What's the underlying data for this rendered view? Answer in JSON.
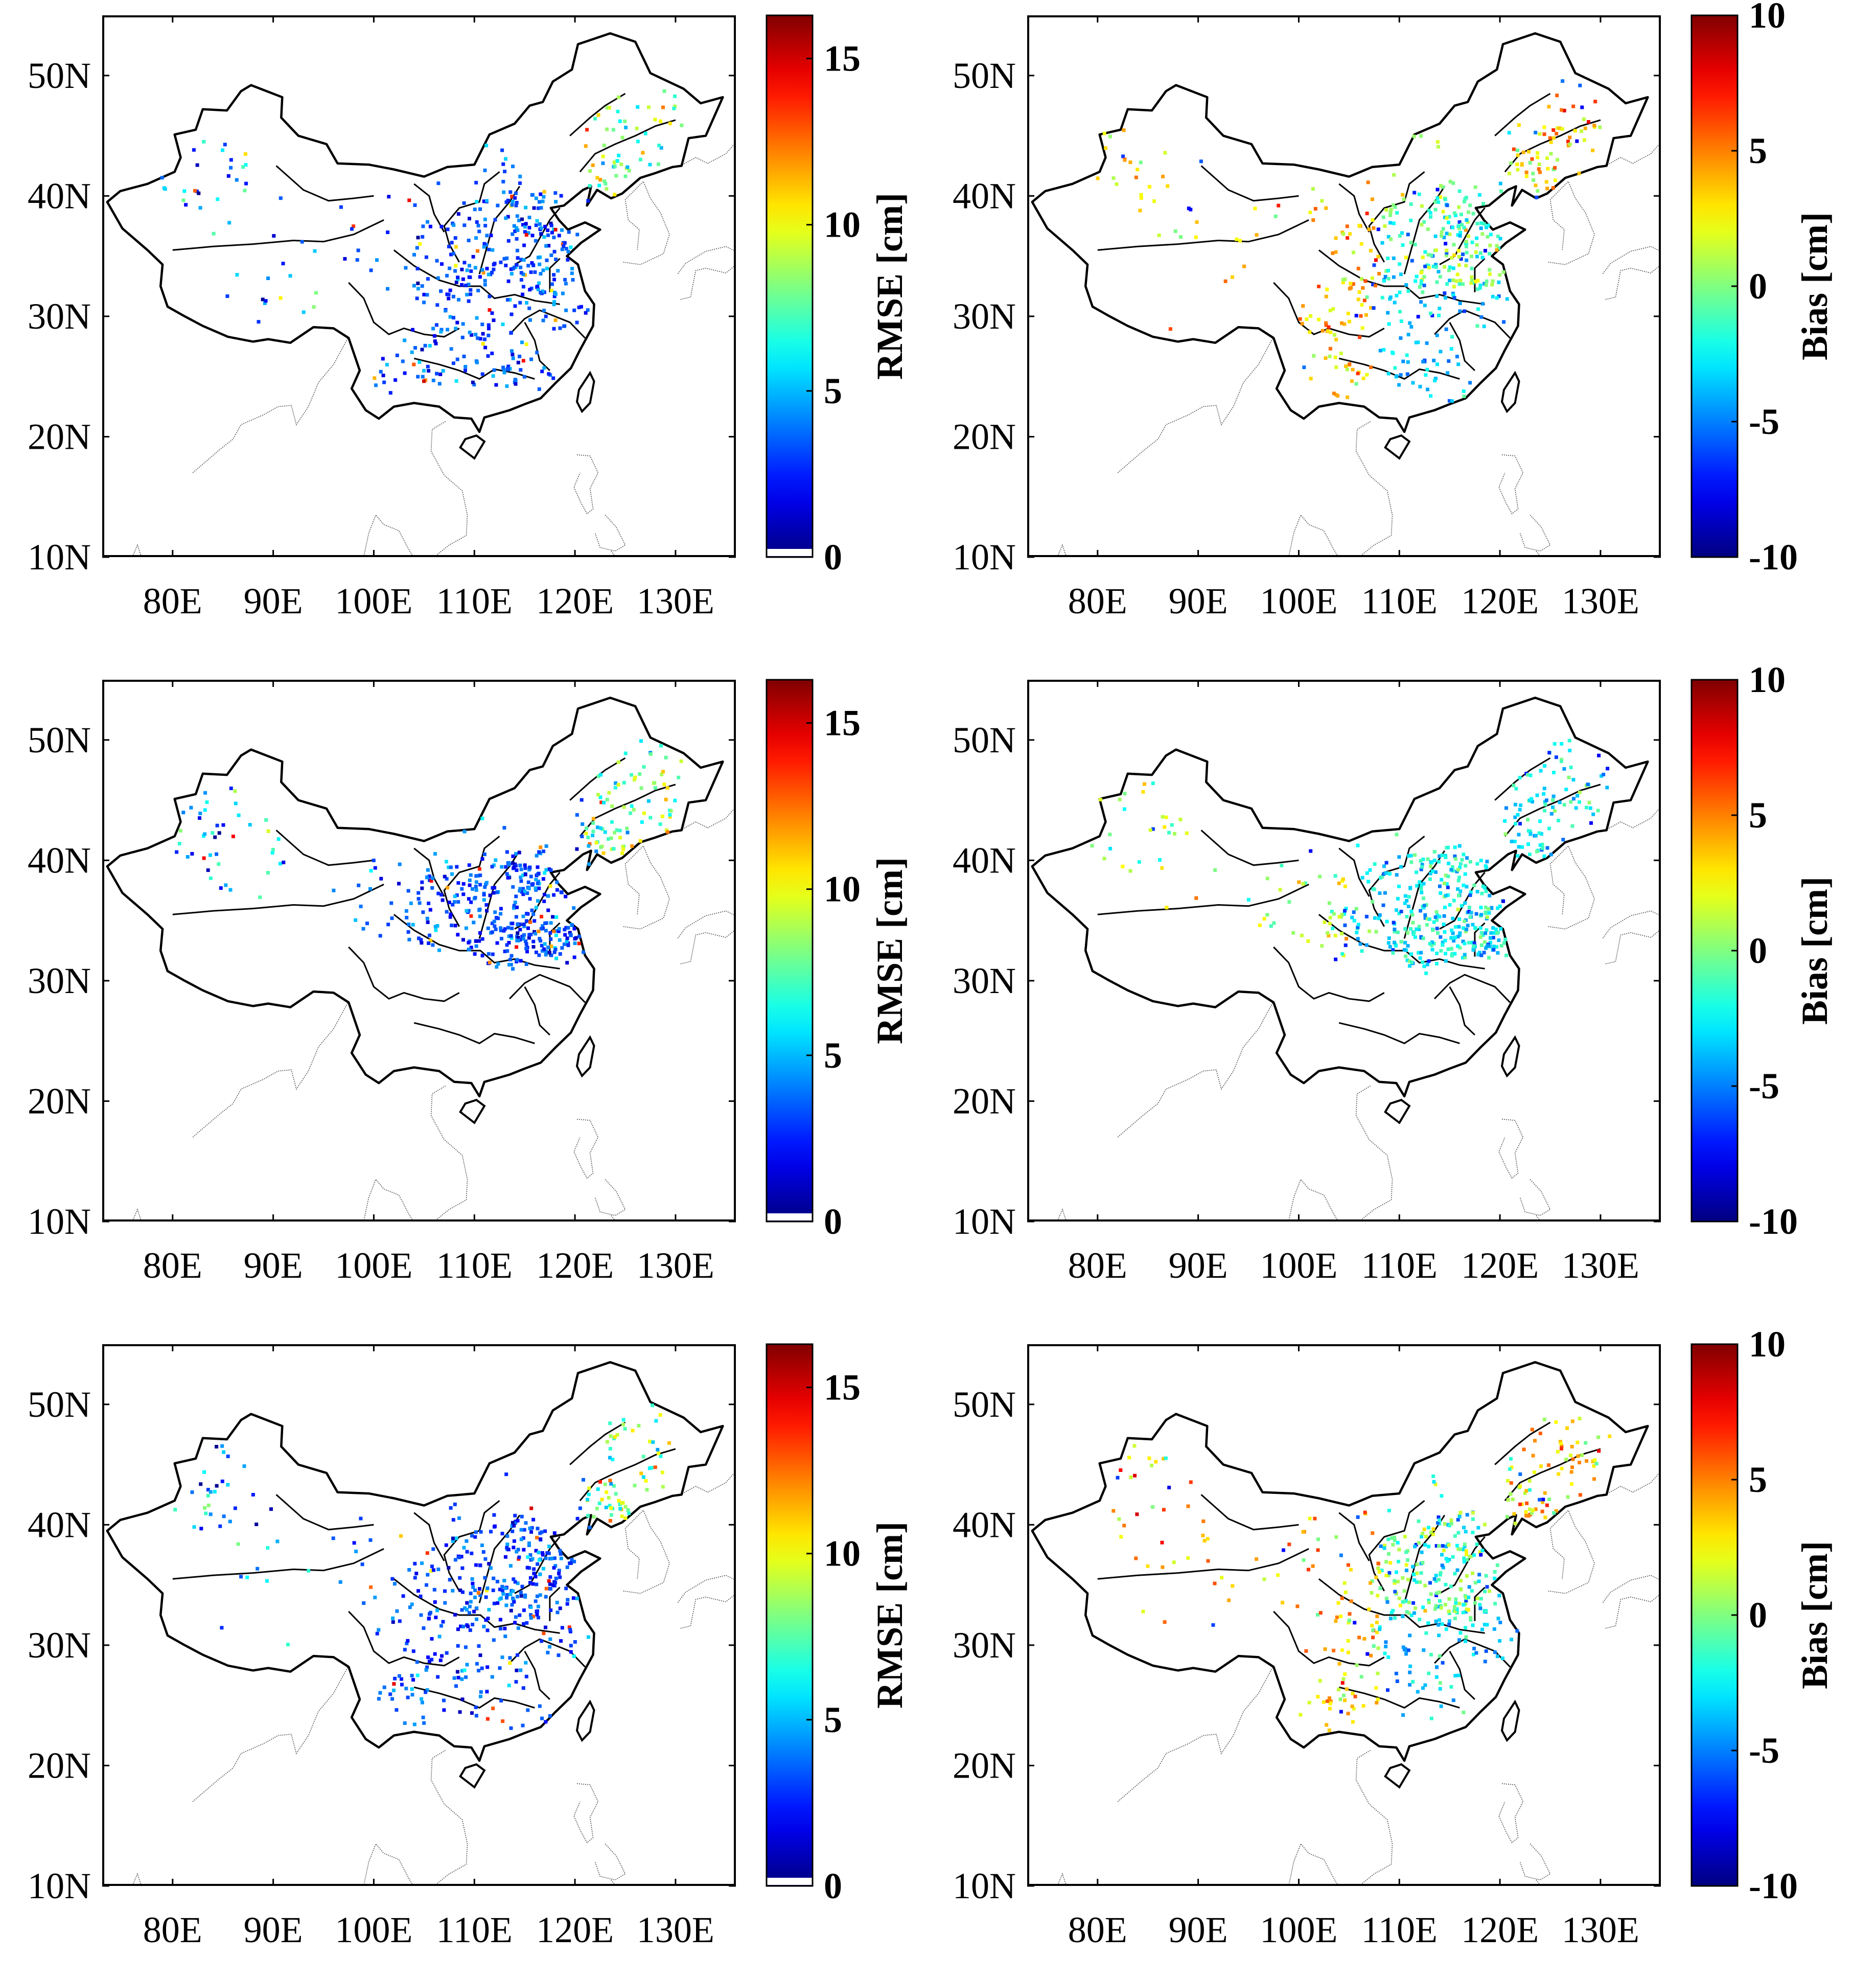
{
  "figure": {
    "rmse_colorbar": {
      "label": "RMSE [cm]",
      "ticks": [
        "0",
        "5",
        "10",
        "15"
      ],
      "range": [
        0,
        16.3
      ]
    },
    "bias_colorbar": {
      "label": "Bias [cm]",
      "ticks": [
        "-10",
        "-5",
        "0",
        "5",
        "10"
      ],
      "range": [
        -10,
        10
      ]
    }
  },
  "chart_data": [
    {
      "type": "scatter",
      "metric": "RMSE",
      "row": 1,
      "col": 1,
      "cbar_label": "RMSE [cm]",
      "xlim": [
        73,
        136
      ],
      "ylim": [
        10,
        55
      ],
      "xticks": [
        "80E",
        "90E",
        "100E",
        "110E",
        "120E",
        "130E"
      ],
      "yticks": [
        "10N",
        "20N",
        "30N",
        "40N",
        "50N"
      ],
      "seed": 11,
      "description": "Station RMSE mostly 1-6 cm in north/central China, higher (8-14 cm) in the northeast"
    },
    {
      "type": "scatter",
      "metric": "Bias",
      "row": 1,
      "col": 2,
      "cbar_label": "Bias [cm]",
      "xlim": [
        73,
        136
      ],
      "ylim": [
        10,
        55
      ],
      "xticks": [
        "80E",
        "90E",
        "100E",
        "110E",
        "120E",
        "130E"
      ],
      "yticks": [
        "10N",
        "20N",
        "30N",
        "40N",
        "50N"
      ],
      "seed": 23,
      "description": "Station bias mostly -4 to +4 cm, positive in western/northeastern regions"
    },
    {
      "type": "scatter",
      "metric": "RMSE",
      "row": 2,
      "col": 1,
      "cbar_label": "RMSE [cm]",
      "xlim": [
        73,
        136
      ],
      "ylim": [
        10,
        55
      ],
      "xticks": [
        "80E",
        "90E",
        "100E",
        "110E",
        "120E",
        "130E"
      ],
      "yticks": [
        "10N",
        "20N",
        "30N",
        "40N",
        "50N"
      ],
      "seed": 37,
      "description": "Station RMSE, north China only, mostly 1-6 cm, higher in northeast"
    },
    {
      "type": "scatter",
      "metric": "Bias",
      "row": 2,
      "col": 2,
      "cbar_label": "Bias [cm]",
      "xlim": [
        73,
        136
      ],
      "ylim": [
        10,
        55
      ],
      "xticks": [
        "80E",
        "90E",
        "100E",
        "110E",
        "120E",
        "130E"
      ],
      "yticks": [
        "10N",
        "20N",
        "30N",
        "40N",
        "50N"
      ],
      "seed": 41,
      "description": "Station bias, north China only, mostly -5 to 0 cm"
    },
    {
      "type": "scatter",
      "metric": "RMSE",
      "row": 3,
      "col": 1,
      "cbar_label": "RMSE [cm]",
      "xlim": [
        73,
        136
      ],
      "ylim": [
        10,
        55
      ],
      "xticks": [
        "80E",
        "90E",
        "100E",
        "110E",
        "120E",
        "130E"
      ],
      "yticks": [
        "10N",
        "20N",
        "30N",
        "40N",
        "50N"
      ],
      "seed": 53,
      "description": "Station RMSE mostly 1-6 cm, higher in northeast and west"
    },
    {
      "type": "scatter",
      "metric": "Bias",
      "row": 3,
      "col": 2,
      "cbar_label": "Bias [cm]",
      "xlim": [
        73,
        136
      ],
      "ylim": [
        10,
        55
      ],
      "xticks": [
        "80E",
        "90E",
        "100E",
        "110E",
        "120E",
        "130E"
      ],
      "yticks": [
        "10N",
        "20N",
        "30N",
        "40N",
        "50N"
      ],
      "seed": 67,
      "description": "Station bias mostly -3 to +5 cm, positive in western and northeastern regions"
    }
  ]
}
